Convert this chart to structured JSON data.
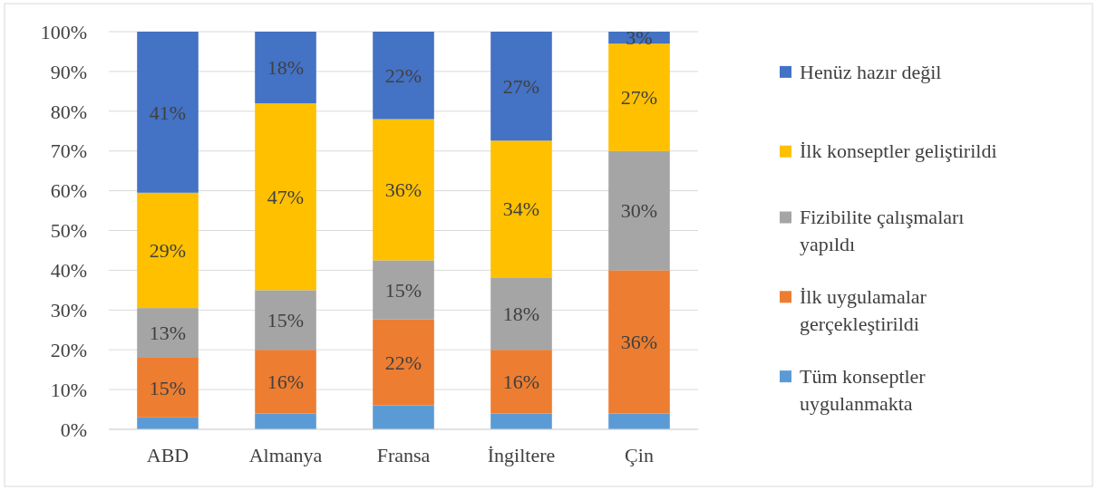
{
  "chart_data": {
    "type": "bar",
    "stacked": true,
    "categories": [
      "ABD",
      "Almanya",
      "Fransa",
      "İngiltere",
      "Çin"
    ],
    "series": [
      {
        "name": "Tüm konseptler uygulanmakta",
        "color": "#5b9bd5",
        "values": [
          3,
          4,
          6,
          4,
          4
        ],
        "value_labels": [
          null,
          null,
          null,
          null,
          null
        ]
      },
      {
        "name": "İlk uygulamalar gerçekleştirildi",
        "color": "#ed7d31",
        "values": [
          15,
          16,
          21.7,
          16,
          36
        ],
        "value_labels": [
          "15%",
          "16%",
          "22%",
          "16%",
          "36%"
        ]
      },
      {
        "name": "Fizibilite çalışmaları yapıldı",
        "color": "#a5a5a5",
        "values": [
          12.5,
          15,
          14.8,
          18.2,
          30
        ],
        "value_labels": [
          "13%",
          "15%",
          "15%",
          "18%",
          "30%"
        ]
      },
      {
        "name": "İlk konseptler geliştirildi",
        "color": "#ffc000",
        "values": [
          29,
          47,
          35.5,
          34.4,
          27
        ],
        "value_labels": [
          "29%",
          "47%",
          "36%",
          "34%",
          "27%"
        ]
      },
      {
        "name": "Henüz hazır değil",
        "color": "#4472c4",
        "values": [
          40.5,
          18,
          22,
          27.4,
          3
        ],
        "value_labels": [
          "41%",
          "18%",
          "22%",
          "27%",
          "3%"
        ]
      }
    ],
    "ylim": [
      0,
      100
    ],
    "yticks": [
      {
        "value": 0,
        "label": "0%"
      },
      {
        "value": 10,
        "label": "10%"
      },
      {
        "value": 20,
        "label": "20%"
      },
      {
        "value": 30,
        "label": "30%"
      },
      {
        "value": 40,
        "label": "40%"
      },
      {
        "value": 50,
        "label": "50%"
      },
      {
        "value": 60,
        "label": "60%"
      },
      {
        "value": 70,
        "label": "70%"
      },
      {
        "value": 80,
        "label": "80%"
      },
      {
        "value": 90,
        "label": "90%"
      },
      {
        "value": 100,
        "label": "100%"
      }
    ],
    "grid": "y",
    "legend": "right"
  }
}
